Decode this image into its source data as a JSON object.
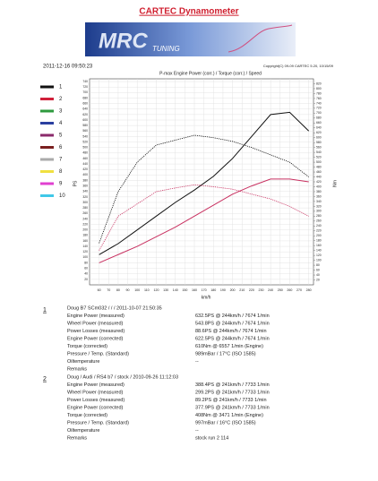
{
  "header": {
    "title": "CARTEC Dynamometer",
    "logo_text": "TUNING"
  },
  "timestamp": "2011-12-16 09:50:23",
  "copyright": "Copyright(C) 09-09 CARTEC 5.20, 10/15/09",
  "legend": [
    {
      "label": "1",
      "color": "#111111"
    },
    {
      "label": "2",
      "color": "#d0203a"
    },
    {
      "label": "3",
      "color": "#2e9a3e"
    },
    {
      "label": "4",
      "color": "#2a3fa0"
    },
    {
      "label": "5",
      "color": "#8b2a6b"
    },
    {
      "label": "6",
      "color": "#7a2020"
    },
    {
      "label": "7",
      "color": "#aaaaaa"
    },
    {
      "label": "8",
      "color": "#f0e040"
    },
    {
      "label": "9",
      "color": "#e040d0"
    },
    {
      "label": "10",
      "color": "#40c8e8"
    }
  ],
  "chart_data": {
    "type": "line",
    "title": "P-max Engine Power (corr.) / Torque (corr.) / Speed",
    "xlabel": "km/h",
    "ylabel": "PS",
    "y2label": "Nm",
    "x": [
      60,
      80,
      100,
      120,
      140,
      160,
      180,
      200,
      220,
      240,
      260,
      280
    ],
    "series": [
      {
        "color": "#111111",
        "style": "solid",
        "values": [
          110,
          150,
          200,
          250,
          300,
          345,
          395,
          460,
          540,
          620,
          628,
          560
        ]
      },
      {
        "color": "#111111",
        "style": "dotted",
        "axis": "y2",
        "values": [
          170,
          380,
          500,
          570,
          590,
          610,
          600,
          585,
          560,
          530,
          500,
          440
        ]
      },
      {
        "color": "#c83060",
        "style": "solid",
        "values": [
          80,
          110,
          140,
          175,
          210,
          250,
          290,
          330,
          360,
          385,
          385,
          375
        ]
      },
      {
        "color": "#c83060",
        "style": "dotted",
        "axis": "y2",
        "values": [
          140,
          280,
          330,
          380,
          395,
          408,
          400,
          390,
          370,
          350,
          320,
          280
        ]
      }
    ],
    "xlim": [
      50,
      285
    ],
    "xticks": [
      60,
      70,
      80,
      90,
      100,
      110,
      120,
      130,
      140,
      150,
      160,
      170,
      180,
      190,
      200,
      210,
      220,
      230,
      240,
      250,
      260,
      270,
      280
    ],
    "ylim": [
      0,
      750
    ],
    "yticks": [
      20,
      40,
      60,
      80,
      100,
      120,
      140,
      160,
      180,
      200,
      220,
      240,
      260,
      280,
      300,
      320,
      340,
      360,
      380,
      400,
      420,
      440,
      460,
      480,
      500,
      520,
      540,
      560,
      580,
      600,
      620,
      640,
      660,
      680,
      700,
      720,
      740
    ],
    "y2lim": [
      0,
      840
    ],
    "y2ticks": [
      20,
      40,
      60,
      80,
      100,
      120,
      140,
      160,
      180,
      200,
      220,
      240,
      260,
      280,
      300,
      320,
      340,
      360,
      380,
      400,
      420,
      440,
      460,
      480,
      500,
      520,
      540,
      560,
      580,
      600,
      620,
      640,
      660,
      680,
      700,
      720,
      740,
      760,
      780,
      800,
      820
    ],
    "grid": true
  },
  "runs": [
    {
      "number": "1",
      "header": "Doug B7 SCm032 /  /  / 2011-10-07 21:50:35",
      "rows": [
        [
          "Engine Power (measured)",
          "632.5PS @ 244km/h / 7674 1/min"
        ],
        [
          "Wheel Power (measured)",
          "543.8PS @ 244km/h / 7674 1/min"
        ],
        [
          "Power Losses (measured)",
          "88.6PS @ 244km/h / 7674 1/min"
        ],
        [
          "Engine Power (corrected)",
          "622.5PS @ 244km/h / 7674 1/min"
        ],
        [
          "Torque (corrected)",
          "610Nm @ 6557 1/min (Engine)"
        ],
        [
          "Pressure / Temp. (Standard)",
          "989mBar / 17°C   (ISO 1585)"
        ],
        [
          "Oiltemperature",
          "--"
        ],
        [
          "Remarks"
        ]
      ]
    },
    {
      "number": "2",
      "header": "Doug / Audi / RS4 b7 / stock / 2010-09-26 11:12:03",
      "rows": [
        [
          "Engine Power (measured)",
          "388.4PS @ 241km/h / 7733 1/min"
        ],
        [
          "Wheel Power (measured)",
          "299.2PS @ 241km/h / 7733 1/min"
        ],
        [
          "Power Losses (measured)",
          "89.2PS @ 241km/h / 7733 1/min"
        ],
        [
          "Engine Power (corrected)",
          "377.9PS @ 241km/h / 7733 1/min"
        ],
        [
          "Torque (corrected)",
          "408Nm @ 3471 1/min (Engine)"
        ],
        [
          "Pressure / Temp. (Standard)",
          "997mBar / 16°C   (ISO 1585)"
        ],
        [
          "Oiltemperature",
          "--"
        ],
        [
          "Remarks",
          "stock run 2 114"
        ]
      ]
    }
  ]
}
